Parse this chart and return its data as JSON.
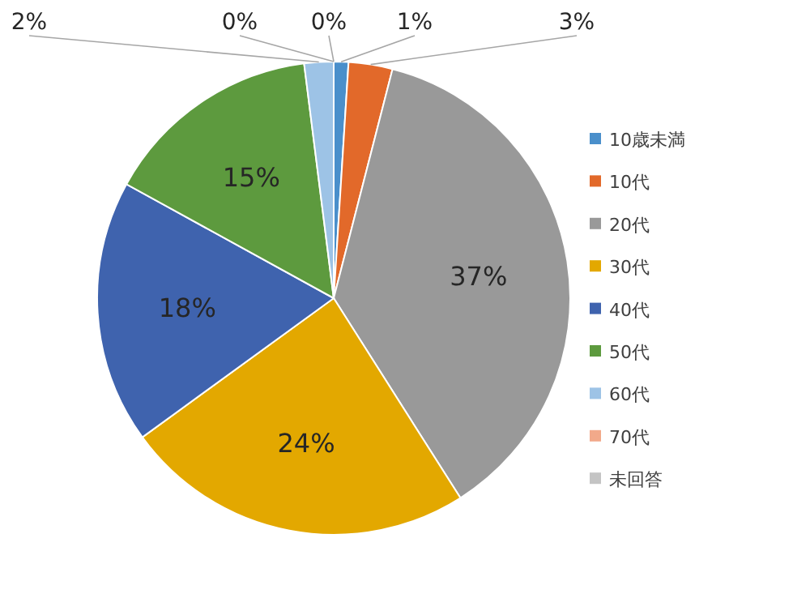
{
  "chart_data": {
    "type": "pie",
    "categories": [
      "10歳未満",
      "10代",
      "20代",
      "30代",
      "40代",
      "50代",
      "60代",
      "70代",
      "未回答"
    ],
    "values": [
      1,
      3,
      37,
      24,
      18,
      15,
      2,
      0,
      0
    ],
    "colors": [
      "#4a8fcb",
      "#e2692a",
      "#999999",
      "#e3a800",
      "#3f63ae",
      "#5d9a3e",
      "#9dc3e6",
      "#f2a98a",
      "#c4c4c4"
    ],
    "value_labels": [
      "1%",
      "3%",
      "37%",
      "24%",
      "18%",
      "15%",
      "2%",
      "0%",
      "0%"
    ],
    "legend": "right"
  }
}
